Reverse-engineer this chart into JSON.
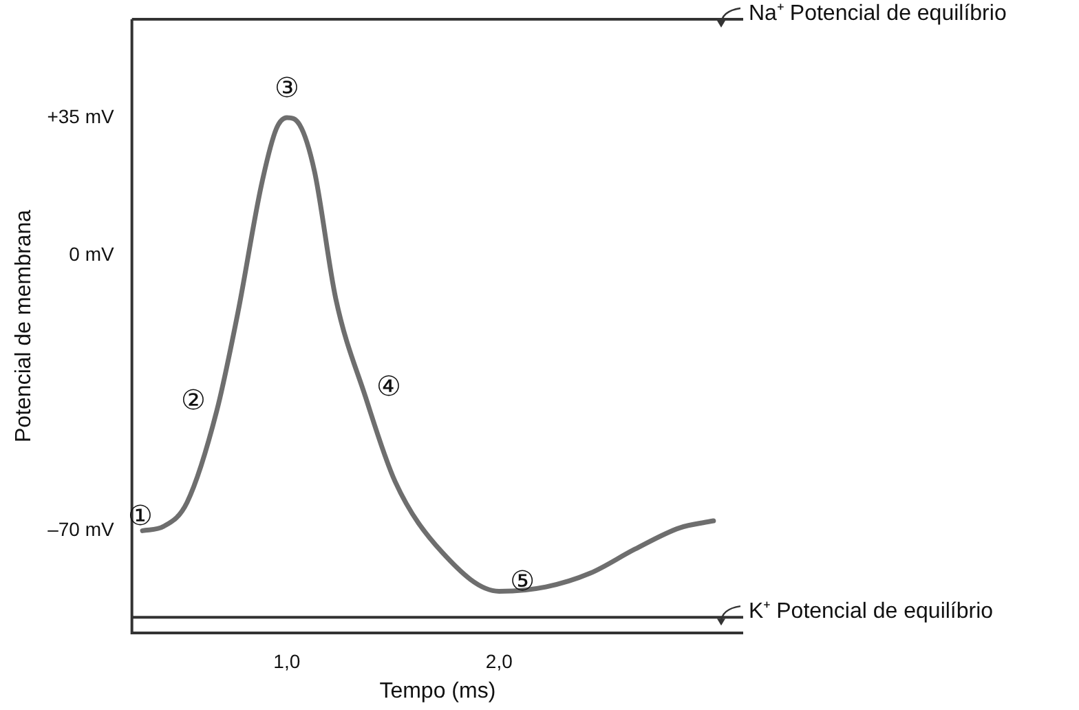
{
  "chart_data": {
    "type": "line",
    "xlabel": "Tempo (ms)",
    "ylabel": "Potencial de membrana",
    "x": [
      0.32,
      0.42,
      0.53,
      0.67,
      0.77,
      0.88,
      0.95,
      1.0,
      1.06,
      1.13,
      1.23,
      1.37,
      1.51,
      1.73,
      2.0,
      2.22,
      2.43,
      2.64,
      2.85,
      3.01
    ],
    "series": [
      {
        "color": "#6e6e6e",
        "values": [
          -70,
          -68.9,
          -62.8,
          -39.5,
          -14.4,
          17.8,
          32.1,
          35,
          33.2,
          21.4,
          -10.9,
          -35.9,
          -57.5,
          -75.4,
          -85.4,
          -84.3,
          -80.8,
          -74.7,
          -69.3,
          -67.5
        ]
      }
    ],
    "xlim": [
      0.27,
      3.15
    ],
    "ylim": [
      -96,
      60
    ],
    "xticks": [
      {
        "value": 1,
        "label": "1,0"
      },
      {
        "value": 2,
        "label": "2,0"
      }
    ],
    "yticks": [
      {
        "value": 35,
        "label": "+35 mV"
      },
      {
        "value": 0,
        "label": "0 mV"
      },
      {
        "value": -70,
        "label": "–70 mV"
      }
    ],
    "ref_lines": [
      {
        "axis": "y",
        "value": 60,
        "label": "Na⁺ Potencial de equilíbrio",
        "color": "#333333"
      },
      {
        "axis": "y",
        "value": -92,
        "label": "K⁺ Potencial de equilíbrio",
        "color": "#333333"
      }
    ],
    "annotations": [
      {
        "text": "①",
        "x": 0.42,
        "y": -68.9
      },
      {
        "text": "②",
        "x": 0.67,
        "y": -39.5
      },
      {
        "text": "③",
        "x": 1.0,
        "y": 35
      },
      {
        "text": "④",
        "x": 1.37,
        "y": -35.9
      },
      {
        "text": "⑤",
        "x": 2.0,
        "y": -85.4
      }
    ],
    "grid": false,
    "legend": false,
    "marker": "none",
    "line_style": "solid"
  }
}
